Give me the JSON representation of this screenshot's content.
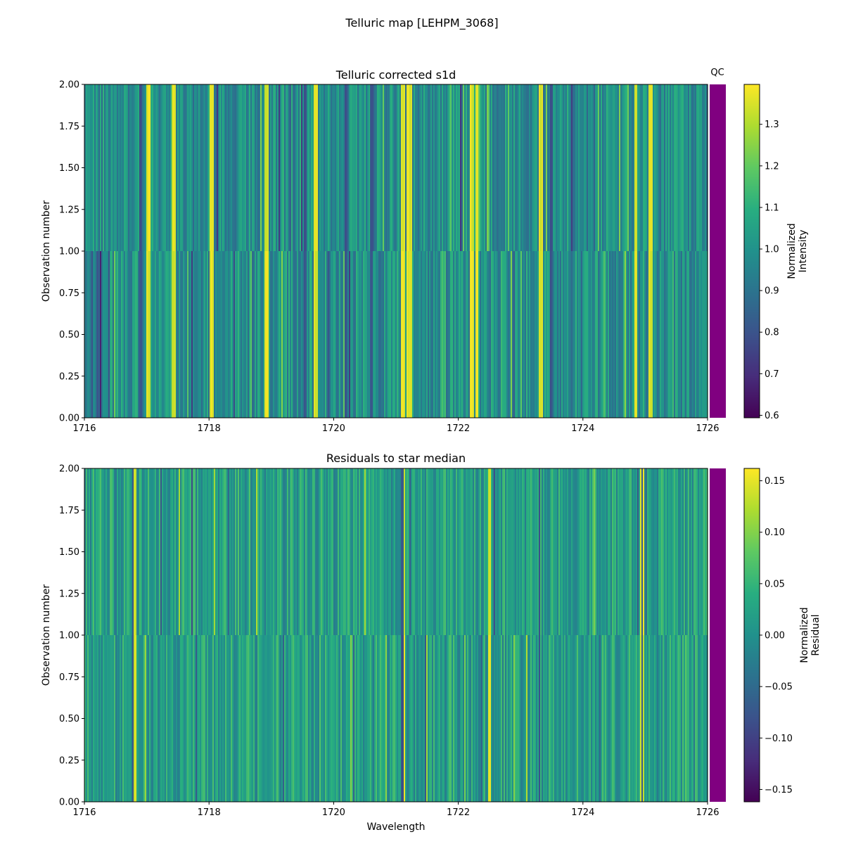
{
  "figure": {
    "title": "Telluric map [LEHPM_3068]"
  },
  "chart_data": [
    {
      "type": "heatmap",
      "title": "Telluric corrected s1d",
      "xlabel": "",
      "ylabel": "Observation number",
      "xlim": [
        1716,
        1726
      ],
      "ylim": [
        0,
        2
      ],
      "x_ticks": [
        "1716",
        "1718",
        "1720",
        "1722",
        "1724",
        "1726"
      ],
      "y_ticks": [
        "0.00",
        "0.25",
        "0.50",
        "0.75",
        "1.00",
        "1.25",
        "1.50",
        "1.75",
        "2.00"
      ],
      "rows": [
        {
          "observation": 0,
          "y_range": [
            0,
            1
          ]
        },
        {
          "observation": 1,
          "y_range": [
            1,
            2
          ]
        }
      ],
      "colormap": "viridis",
      "colorbar": {
        "label_line1": "Normalized",
        "label_line2": "Intensity",
        "range": [
          0.594,
          1.396
        ],
        "ticks": [
          "0.6",
          "0.7",
          "0.8",
          "0.9",
          "1.0",
          "1.1",
          "1.2",
          "1.3"
        ]
      },
      "qc": {
        "label": "QC",
        "color": "#800080"
      },
      "bright_lines": [
        1717.03,
        1717.44,
        1718.05,
        1718.92,
        1719.72,
        1721.12,
        1721.2,
        1721.24,
        1722.22,
        1722.3,
        1723.32,
        1724.85,
        1725.08
      ],
      "dark_lines": [
        1716.9,
        1719.55,
        1720.2,
        1720.6,
        1723.5
      ]
    },
    {
      "type": "heatmap",
      "title": "Residuals to star median",
      "xlabel": "Wavelength",
      "ylabel": "Observation number",
      "xlim": [
        1716,
        1726
      ],
      "ylim": [
        0,
        2
      ],
      "x_ticks": [
        "1716",
        "1718",
        "1720",
        "1722",
        "1724",
        "1726"
      ],
      "y_ticks": [
        "0.00",
        "0.25",
        "0.50",
        "0.75",
        "1.00",
        "1.25",
        "1.50",
        "1.75",
        "2.00"
      ],
      "rows": [
        {
          "observation": 0,
          "y_range": [
            0,
            1
          ]
        },
        {
          "observation": 1,
          "y_range": [
            1,
            2
          ]
        }
      ],
      "colormap": "viridis",
      "colorbar": {
        "label_line1": "Normalized",
        "label_line2": "Residual",
        "range": [
          -0.162,
          0.162
        ],
        "ticks": [
          "−0.15",
          "−0.10",
          "−0.05",
          "0.00",
          "0.05",
          "0.10",
          "0.15"
        ]
      },
      "qc": {
        "label": "",
        "color": "#800080"
      },
      "bright_lines": [
        1716.8,
        1721.12,
        1722.5,
        1724.95
      ],
      "dark_lines": [
        1716.78,
        1721.1,
        1723.3,
        1724.95
      ]
    }
  ]
}
